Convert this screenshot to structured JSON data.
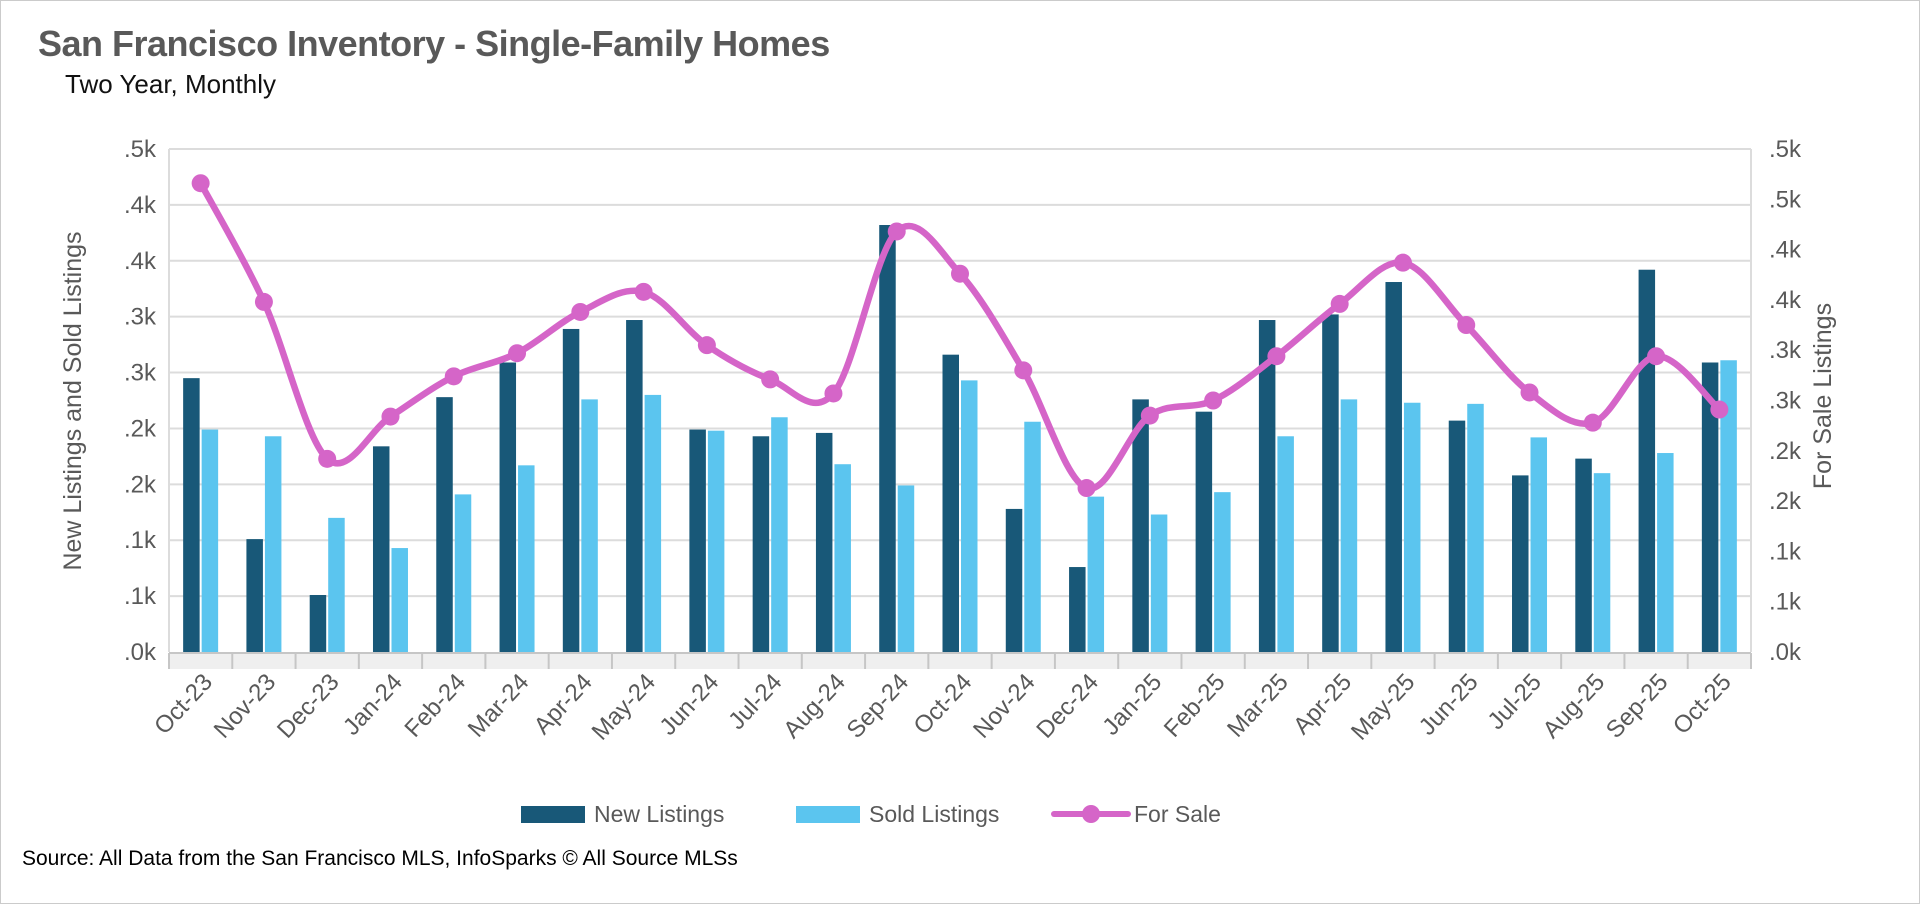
{
  "page": {
    "title": "San Francisco Inventory - Single-Family Homes",
    "subtitle": "Two Year, Monthly",
    "source": "Source: All Data from the San Francisco MLS, InfoSparks © All Source MLSs"
  },
  "legend": {
    "items": [
      {
        "label": "New Listings",
        "color": "#185878",
        "type": "bar"
      },
      {
        "label": "Sold Listings",
        "color": "#5BC5EF",
        "type": "bar"
      },
      {
        "label": "For Sale",
        "color": "#D565C8",
        "type": "line"
      }
    ]
  },
  "colors": {
    "title_gray": "#595959",
    "axis_text": "#595959",
    "gridline": "#dcdcdc",
    "axis_line": "#c6c6c6",
    "strip_fill": "#efefef",
    "strip_tick": "#c6c6c6"
  },
  "chart_data": {
    "type": "bar+line",
    "title": "San Francisco Inventory - Single-Family Homes",
    "subtitle": "Two Year, Monthly",
    "categories": [
      "Oct-23",
      "Nov-23",
      "Dec-23",
      "Jan-24",
      "Feb-24",
      "Mar-24",
      "Apr-24",
      "May-24",
      "Jun-24",
      "Jul-24",
      "Aug-24",
      "Sep-24",
      "Oct-24",
      "Nov-24",
      "Dec-24",
      "Jan-25",
      "Feb-25",
      "Mar-25",
      "Apr-25",
      "May-25",
      "Jun-25",
      "Jul-25",
      "Aug-25",
      "Sep-25",
      "Oct-25"
    ],
    "series": [
      {
        "name": "New Listings",
        "type": "bar",
        "axis": "left",
        "color": "#185878",
        "values": [
          245,
          101,
          51,
          184,
          228,
          259,
          289,
          297,
          199,
          193,
          196,
          382,
          266,
          128,
          76,
          226,
          215,
          297,
          302,
          331,
          207,
          158,
          173,
          342,
          259
        ]
      },
      {
        "name": "Sold Listings",
        "type": "bar",
        "axis": "left",
        "color": "#5BC5EF",
        "values": [
          199,
          193,
          120,
          93,
          141,
          167,
          226,
          230,
          198,
          210,
          168,
          149,
          243,
          206,
          139,
          123,
          143,
          193,
          226,
          223,
          222,
          192,
          160,
          178,
          261
        ]
      },
      {
        "name": "For Sale",
        "type": "line",
        "axis": "right",
        "color": "#D565C8",
        "values": [
          466,
          348,
          192,
          234,
          274,
          297,
          338,
          358,
          305,
          271,
          257,
          418,
          376,
          280,
          163,
          235,
          250,
          294,
          346,
          387,
          325,
          258,
          228,
          294,
          241
        ]
      }
    ],
    "axes": {
      "left": {
        "title": "New Listings and Sold Listings",
        "min": 0,
        "max": 450,
        "tick_step": 50,
        "tick_labels_bottom_up": [
          ".0k",
          ".1k",
          ".1k",
          ".2k",
          ".2k",
          ".3k",
          ".3k",
          ".4k",
          ".4k",
          ".5k"
        ]
      },
      "right": {
        "title": "For Sale Listings",
        "min": 0,
        "max": 500,
        "tick_step": 50,
        "tick_labels_bottom_up": [
          ".0k",
          ".1k",
          ".1k",
          ".2k",
          ".2k",
          ".3k",
          ".3k",
          ".4k",
          ".4k",
          ".5k",
          ".5k"
        ]
      }
    },
    "grid": true,
    "legend_position": "bottom"
  }
}
